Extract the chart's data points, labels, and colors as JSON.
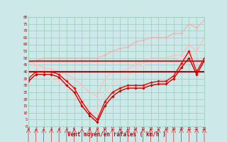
{
  "x": [
    0,
    1,
    2,
    3,
    4,
    5,
    6,
    7,
    8,
    9,
    10,
    11,
    12,
    13,
    14,
    15,
    16,
    17,
    18,
    19,
    20,
    21,
    22,
    23
  ],
  "series": [
    {
      "name": "rafales_top",
      "color": "#ffaaaa",
      "lw": 0.8,
      "marker": "D",
      "ms": 1.5,
      "y": [
        48,
        48,
        50,
        50,
        50,
        50,
        50,
        50,
        50,
        50,
        52,
        55,
        57,
        58,
        62,
        63,
        65,
        65,
        65,
        68,
        68,
        75,
        72,
        78
      ]
    },
    {
      "name": "rafales_mid_light",
      "color": "#ffbbbb",
      "lw": 0.8,
      "marker": "D",
      "ms": 1.5,
      "y": [
        48,
        45,
        43,
        42,
        40,
        38,
        35,
        30,
        25,
        22,
        35,
        40,
        40,
        42,
        45,
        48,
        50,
        50,
        50,
        52,
        52,
        60,
        55,
        65
      ]
    },
    {
      "name": "vent_moyen_light",
      "color": "#ffcccc",
      "lw": 0.8,
      "marker": "D",
      "ms": 1.5,
      "y": [
        48,
        43,
        40,
        35,
        32,
        28,
        22,
        18,
        12,
        10,
        25,
        32,
        33,
        38,
        42,
        45,
        48,
        48,
        48,
        48,
        50,
        55,
        48,
        52
      ]
    },
    {
      "name": "flat_upper",
      "color": "#dd2222",
      "lw": 1.5,
      "marker": null,
      "ms": 0,
      "y": [
        48,
        48,
        48,
        48,
        48,
        48,
        48,
        48,
        48,
        48,
        48,
        48,
        48,
        48,
        48,
        48,
        48,
        48,
        48,
        48,
        48,
        48,
        48,
        48
      ]
    },
    {
      "name": "flat_lower",
      "color": "#880000",
      "lw": 1.2,
      "marker": null,
      "ms": 0,
      "y": [
        40,
        40,
        40,
        40,
        40,
        40,
        40,
        40,
        40,
        40,
        40,
        40,
        40,
        40,
        40,
        40,
        40,
        40,
        40,
        40,
        40,
        40,
        40,
        40
      ]
    },
    {
      "name": "vent_main_red",
      "color": "#ff0000",
      "lw": 1.0,
      "marker": "D",
      "ms": 1.8,
      "y": [
        35,
        40,
        40,
        40,
        38,
        33,
        28,
        18,
        10,
        5,
        18,
        25,
        28,
        30,
        30,
        30,
        32,
        33,
        33,
        37,
        46,
        55,
        40,
        50
      ]
    },
    {
      "name": "vent_dark",
      "color": "#cc0000",
      "lw": 1.0,
      "marker": "D",
      "ms": 1.8,
      "y": [
        33,
        38,
        38,
        38,
        36,
        30,
        25,
        15,
        8,
        3,
        15,
        22,
        26,
        28,
        28,
        28,
        30,
        31,
        31,
        35,
        43,
        50,
        38,
        48
      ]
    },
    {
      "name": "vent_darkest",
      "color": "#aa0000",
      "lw": 1.0,
      "marker": null,
      "ms": 0,
      "y": [
        40,
        40,
        40,
        40,
        40,
        40,
        40,
        40,
        40,
        40,
        40,
        40,
        40,
        40,
        40,
        40,
        40,
        40,
        40,
        40,
        40,
        40,
        40,
        40
      ]
    }
  ],
  "xlabel": "Vent moyen/en rafales ( km/h )",
  "xlim": [
    0,
    23
  ],
  "ylim": [
    0,
    80
  ],
  "yticks": [
    0,
    5,
    10,
    15,
    20,
    25,
    30,
    35,
    40,
    45,
    50,
    55,
    60,
    65,
    70,
    75,
    80
  ],
  "xticks": [
    0,
    1,
    2,
    3,
    4,
    5,
    6,
    7,
    8,
    9,
    10,
    11,
    12,
    13,
    14,
    15,
    16,
    17,
    18,
    19,
    20,
    21,
    22,
    23
  ],
  "bg_color": "#cce8e8",
  "grid_color": "#99ccbb",
  "tick_color": "#cc0000",
  "xlabel_color": "#cc0000",
  "grid_lw": 0.5
}
